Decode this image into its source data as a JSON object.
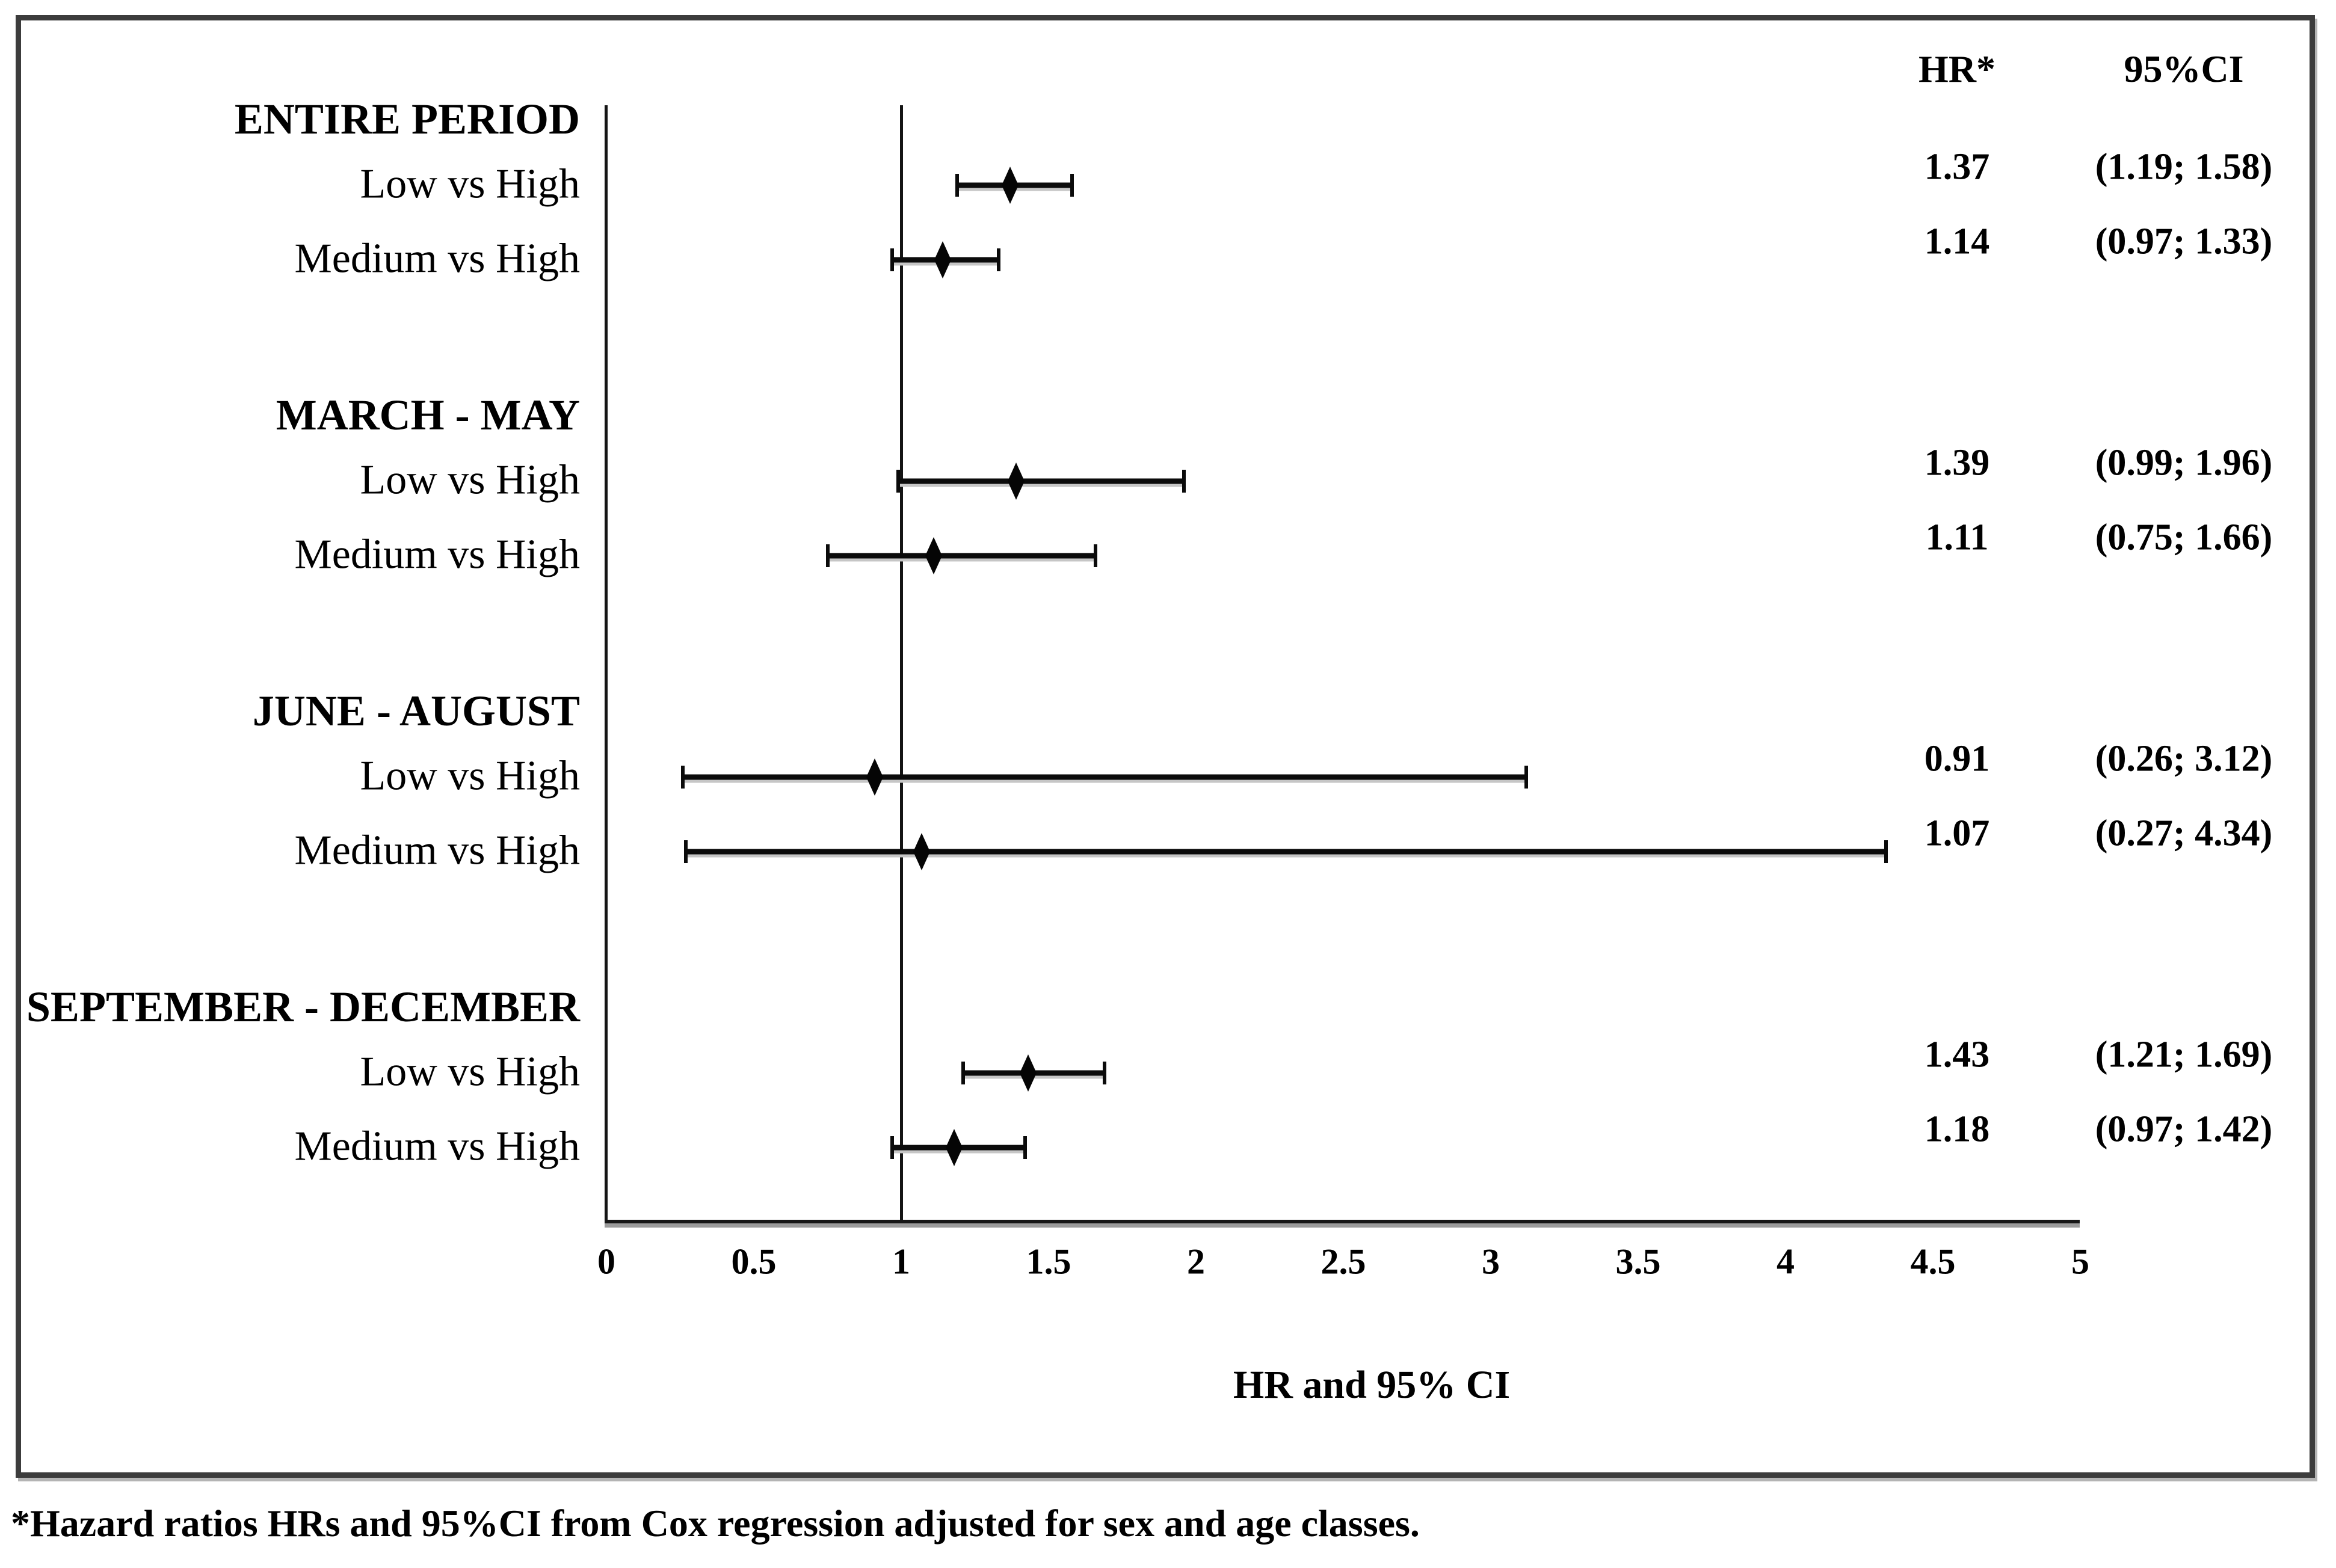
{
  "chart_data": {
    "type": "forest",
    "title": "",
    "xlabel": "HR and 95% CI",
    "ylabel": "",
    "xlim": [
      0,
      5
    ],
    "x_ticks": [
      0,
      0.5,
      1,
      1.5,
      2,
      2.5,
      3,
      3.5,
      4,
      4.5,
      5
    ],
    "x_tick_labels": [
      "0",
      "0.5",
      "1",
      "1.5",
      "2",
      "2.5",
      "3",
      "3.5",
      "4",
      "4.5",
      "5"
    ],
    "reference_line_x": 1,
    "grid": false,
    "marker": "filled-diamond",
    "columns": [
      "HR*",
      "95%CI"
    ],
    "sections": [
      {
        "label": "ENTIRE PERIOD",
        "rows": [
          {
            "label": "Low vs High",
            "hr": 1.37,
            "ci_low": 1.19,
            "ci_high": 1.58,
            "hr_text": "1.37",
            "ci_text": "(1.19; 1.58)"
          },
          {
            "label": "Medium vs High",
            "hr": 1.14,
            "ci_low": 0.97,
            "ci_high": 1.33,
            "hr_text": "1.14",
            "ci_text": "(0.97; 1.33)"
          }
        ]
      },
      {
        "label": "MARCH - MAY",
        "rows": [
          {
            "label": "Low vs High",
            "hr": 1.39,
            "ci_low": 0.99,
            "ci_high": 1.96,
            "hr_text": "1.39",
            "ci_text": "(0.99; 1.96)"
          },
          {
            "label": "Medium vs High",
            "hr": 1.11,
            "ci_low": 0.75,
            "ci_high": 1.66,
            "hr_text": "1.11",
            "ci_text": "(0.75; 1.66)"
          }
        ]
      },
      {
        "label": "JUNE - AUGUST",
        "rows": [
          {
            "label": "Low vs High",
            "hr": 0.91,
            "ci_low": 0.26,
            "ci_high": 3.12,
            "hr_text": "0.91",
            "ci_text": "(0.26; 3.12)"
          },
          {
            "label": "Medium vs High",
            "hr": 1.07,
            "ci_low": 0.27,
            "ci_high": 4.34,
            "hr_text": "1.07",
            "ci_text": "(0.27; 4.34)"
          }
        ]
      },
      {
        "label": "SEPTEMBER - DECEMBER",
        "rows": [
          {
            "label": "Low vs High",
            "hr": 1.43,
            "ci_low": 1.21,
            "ci_high": 1.69,
            "hr_text": "1.43",
            "ci_text": "(1.21; 1.69)"
          },
          {
            "label": "Medium vs High",
            "hr": 1.18,
            "ci_low": 0.97,
            "ci_high": 1.42,
            "hr_text": "1.18",
            "ci_text": "(0.97; 1.42)"
          }
        ]
      }
    ],
    "footnote": "*Hazard ratios HRs and 95%CI from Cox regression adjusted for sex and age classes.",
    "colors": {
      "text": "#000000",
      "marker": "#050505",
      "lines": "#141414",
      "border": "#3c3c3c",
      "background": "#ffffff"
    },
    "legend": null
  }
}
